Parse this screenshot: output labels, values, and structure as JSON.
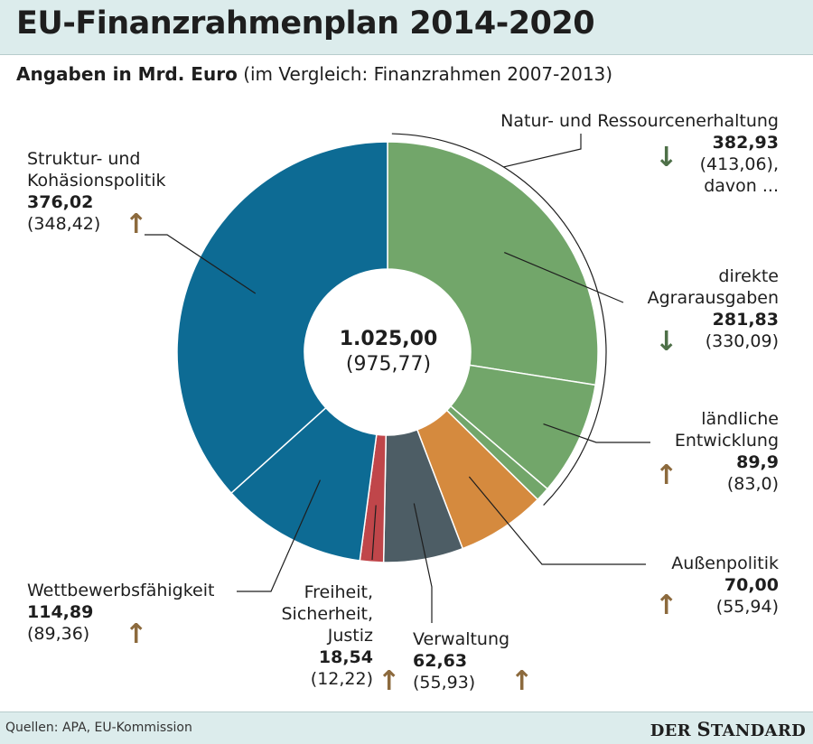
{
  "title": "EU-Finanzrahmenplan 2014-2020",
  "subtitle": {
    "bold": "Angaben in Mrd. Euro",
    "rest": "(im Vergleich: Finanzrahmen 2007-2013)"
  },
  "footer": {
    "source": "Quellen: APA, EU-Kommission",
    "brand_part1": "DER ",
    "brand_part2_first": "S",
    "brand_part2_rest": "TANDARD"
  },
  "icons": {
    "up": "arrow-up-icon",
    "down": "arrow-down-icon"
  },
  "chart_data": {
    "type": "pie",
    "donut": true,
    "title": "EU-Finanzrahmenplan 2014-2020",
    "unit": "Mrd. Euro",
    "total": {
      "value": "1.025,00",
      "previous": "(975,77)"
    },
    "group": {
      "name": "Natur- und Ressourcenerhaltung",
      "value": "382,93",
      "previous": "(413,06),",
      "note": "davon ...",
      "trend": "down"
    },
    "slices": [
      {
        "id": "agrar",
        "name_lines": [
          "direkte",
          "Agrarausgaben"
        ],
        "value": 281.83,
        "value_label": "281,83",
        "previous_label": "(330,09)",
        "trend": "down",
        "color": "#72a66a"
      },
      {
        "id": "laendlich",
        "name_lines": [
          "ländliche",
          "Entwicklung"
        ],
        "value": 89.9,
        "value_label": "89,9",
        "previous_label": "(83,0)",
        "trend": "up",
        "color": "#72a66a"
      },
      {
        "id": "natur-rest",
        "name_lines": [],
        "value": 11.2,
        "value_label": "",
        "previous_label": "",
        "trend": "",
        "color": "#72a66a"
      },
      {
        "id": "aussen",
        "name_lines": [
          "Außenpolitik"
        ],
        "value": 70.0,
        "value_label": "70,00",
        "previous_label": "(55,94)",
        "trend": "up",
        "color": "#d58a3e"
      },
      {
        "id": "verwaltung",
        "name_lines": [
          "Verwaltung"
        ],
        "value": 62.63,
        "value_label": "62,63",
        "previous_label": "(55,93)",
        "trend": "up",
        "color": "#4d5d65"
      },
      {
        "id": "freiheit",
        "name_lines": [
          "Freiheit,",
          "Sicherheit,",
          "Justiz"
        ],
        "value": 18.54,
        "value_label": "18,54",
        "previous_label": "(12,22)",
        "trend": "up",
        "color": "#c0464a"
      },
      {
        "id": "wettbewerb",
        "name_lines": [
          "Wettbewerbsfähigkeit"
        ],
        "value": 114.89,
        "value_label": "114,89",
        "previous_label": "(89,36)",
        "trend": "up",
        "color": "#0d6b94"
      },
      {
        "id": "struktur",
        "name_lines": [
          "Struktur- und",
          "Kohäsionspolitik"
        ],
        "value": 376.02,
        "value_label": "376,02",
        "previous_label": "(348,42)",
        "trend": "up",
        "color": "#0d6b94"
      }
    ]
  }
}
